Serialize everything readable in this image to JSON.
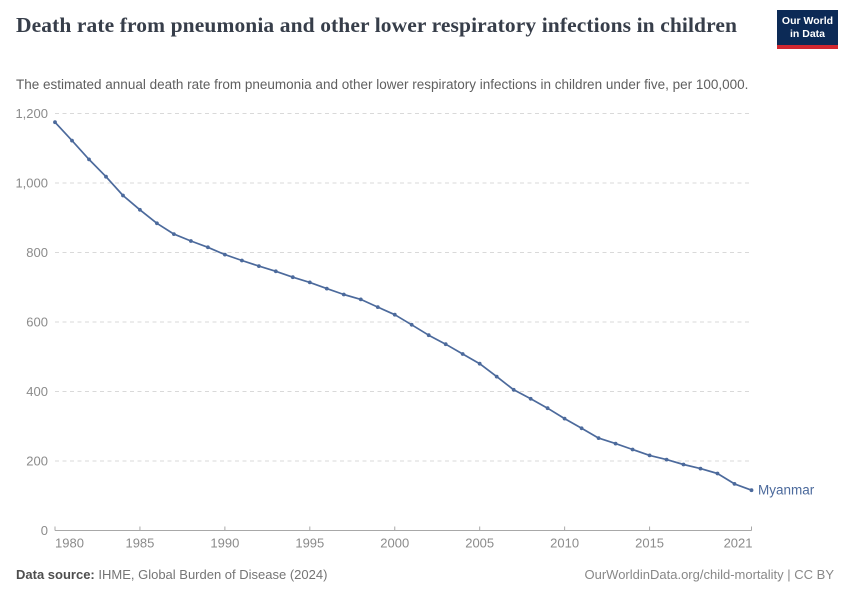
{
  "header": {
    "title": "Death rate from pneumonia and other lower respiratory infections in children",
    "subtitle": "The estimated annual death rate from pneumonia and other lower respiratory infections in children under five, per 100,000.",
    "logo": {
      "line1": "Our World",
      "line2": "in Data"
    }
  },
  "colors": {
    "line": "#4c6a9c",
    "marker": "#4c6a9c",
    "entity_label": "#4c6a9c",
    "gridline": "#d9d9d9",
    "axis_line": "#a8a8a8",
    "axis_tick": "#a8a8a8",
    "axis_label": "#8b8b8b",
    "title": "#373e4a",
    "subtitle": "#5f5f5f",
    "logo_bg": "#0c2a56",
    "logo_red": "#d12730"
  },
  "chart_data": {
    "type": "line",
    "title": "Death rate from pneumonia and other lower respiratory infections in children",
    "subtitle": "The estimated annual death rate from pneumonia and other lower respiratory infections in children under five, per 100,000.",
    "xlabel": "",
    "ylabel": "",
    "xlim": [
      1980,
      2021
    ],
    "ylim": [
      0,
      1200
    ],
    "grid": "horizontal-dashed",
    "legend_position": "line-end-label",
    "x_ticks": [
      1980,
      1985,
      1990,
      1995,
      2000,
      2005,
      2010,
      2015,
      2021
    ],
    "x_tick_labels": [
      "1980",
      "1985",
      "1990",
      "1995",
      "2000",
      "2005",
      "2010",
      "2015",
      "2021"
    ],
    "y_ticks": [
      0,
      200,
      400,
      600,
      800,
      1000,
      1200
    ],
    "y_tick_labels": [
      "0",
      "200",
      "400",
      "600",
      "800",
      "1,000",
      "1,200"
    ],
    "series": [
      {
        "name": "Myanmar",
        "x": [
          1980,
          1981,
          1982,
          1983,
          1984,
          1985,
          1986,
          1987,
          1988,
          1989,
          1990,
          1991,
          1992,
          1993,
          1994,
          1995,
          1996,
          1997,
          1998,
          1999,
          2000,
          2001,
          2002,
          2003,
          2004,
          2005,
          2006,
          2007,
          2008,
          2009,
          2010,
          2011,
          2012,
          2013,
          2014,
          2015,
          2016,
          2017,
          2018,
          2019,
          2020,
          2021
        ],
        "values": [
          1175,
          1122,
          1068,
          1018,
          964,
          923,
          884,
          853,
          833,
          815,
          794,
          777,
          761,
          746,
          729,
          714,
          696,
          679,
          665,
          643,
          621,
          592,
          562,
          536,
          508,
          480,
          443,
          405,
          379,
          352,
          322,
          294,
          266,
          250,
          233,
          216,
          204,
          190,
          178,
          164,
          134,
          116
        ]
      }
    ]
  },
  "footer": {
    "source_label": "Data source:",
    "source_text": " IHME, Global Burden of Disease (2024)",
    "right_text": "OurWorldinData.org/child-mortality | CC BY"
  }
}
